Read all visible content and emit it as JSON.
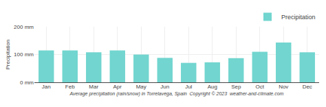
{
  "chart_data": {
    "type": "bar",
    "categories": [
      "Jan",
      "Feb",
      "Mar",
      "Apr",
      "May",
      "Jun",
      "Jul",
      "Aug",
      "Sep",
      "Oct",
      "Nov",
      "Dec"
    ],
    "series": [
      {
        "name": "Precipitation",
        "color": "#72d5cf",
        "values": [
          115,
          115,
          108,
          115,
          100,
          88,
          70,
          72,
          87,
          110,
          143,
          108
        ]
      }
    ],
    "ylabel": "Precipitation",
    "xlabel": "Average precipitation (rain/snow) in Torrelavega, Spain  Copyright © 2023  weather-and-climate.com",
    "ylim": [
      0,
      200
    ],
    "yticks": [
      {
        "value": 0,
        "label": "0 mm"
      },
      {
        "value": 100,
        "label": "100 mm"
      },
      {
        "value": 200,
        "label": "200 mm"
      }
    ],
    "grid": true,
    "legend": "upper right"
  }
}
